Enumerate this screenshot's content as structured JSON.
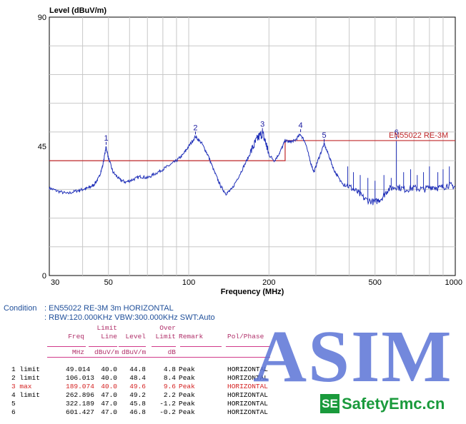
{
  "chart_data": {
    "type": "line",
    "title": "",
    "ylabel": "Level (dBuV/m)",
    "xlabel": "Frequency (MHz)",
    "xscale": "log",
    "xlim": [
      30,
      1000
    ],
    "ylim": [
      0,
      90
    ],
    "yticks": [
      "0",
      "45",
      "90"
    ],
    "xticks": [
      "30",
      "50",
      "100",
      "200",
      "500",
      "1000"
    ],
    "grid": true,
    "colors": {
      "trace": "#2030b8",
      "limit": "#c0282a",
      "grid": "#c8c8c8",
      "text": "#1a1aa0"
    },
    "limit_line": {
      "label": "EN55022 RE-3M",
      "segments": [
        {
          "x": [
            30,
            230
          ],
          "y": 40
        },
        {
          "x": [
            230,
            1000
          ],
          "y": 47
        }
      ]
    },
    "markers": [
      {
        "label": "1",
        "x": 49.014,
        "y": 44.8
      },
      {
        "label": "2",
        "x": 106.013,
        "y": 48.4
      },
      {
        "label": "3",
        "x": 189.074,
        "y": 49.6
      },
      {
        "label": "4",
        "x": 262.896,
        "y": 49.2
      },
      {
        "label": "5",
        "x": 322.189,
        "y": 45.8
      },
      {
        "label": "6",
        "x": 601.427,
        "y": 46.8
      }
    ],
    "trace": [
      [
        30,
        30.5
      ],
      [
        32,
        29.5
      ],
      [
        35,
        28.5
      ],
      [
        38,
        29.5
      ],
      [
        40,
        30
      ],
      [
        42,
        30.5
      ],
      [
        44,
        31.5
      ],
      [
        46,
        34
      ],
      [
        47.5,
        38
      ],
      [
        49,
        44.8
      ],
      [
        50,
        41
      ],
      [
        52,
        36
      ],
      [
        55,
        33.5
      ],
      [
        58,
        32.5
      ],
      [
        62,
        33.5
      ],
      [
        66,
        34.5
      ],
      [
        70,
        34
      ],
      [
        75,
        35.5
      ],
      [
        80,
        37
      ],
      [
        85,
        38.5
      ],
      [
        90,
        40
      ],
      [
        95,
        42
      ],
      [
        100,
        45
      ],
      [
        106,
        48.4
      ],
      [
        112,
        46
      ],
      [
        118,
        42
      ],
      [
        125,
        36
      ],
      [
        132,
        31
      ],
      [
        138,
        28.5
      ],
      [
        145,
        30
      ],
      [
        155,
        35
      ],
      [
        165,
        40
      ],
      [
        175,
        45
      ],
      [
        182,
        48
      ],
      [
        189,
        49.6
      ],
      [
        195,
        46
      ],
      [
        200,
        42
      ],
      [
        210,
        40
      ],
      [
        220,
        43
      ],
      [
        230,
        47
      ],
      [
        240,
        46.5
      ],
      [
        250,
        47
      ],
      [
        262.9,
        49.2
      ],
      [
        275,
        46
      ],
      [
        285,
        40
      ],
      [
        295,
        36
      ],
      [
        305,
        40
      ],
      [
        322,
        45.8
      ],
      [
        335,
        42
      ],
      [
        350,
        37
      ],
      [
        370,
        33
      ],
      [
        400,
        31
      ],
      [
        430,
        29
      ],
      [
        460,
        26.5
      ],
      [
        500,
        25.5
      ],
      [
        530,
        27
      ],
      [
        560,
        30
      ],
      [
        601,
        31
      ],
      [
        650,
        30
      ],
      [
        700,
        30.5
      ],
      [
        760,
        30
      ],
      [
        820,
        31
      ],
      [
        880,
        30.5
      ],
      [
        940,
        31.5
      ],
      [
        1000,
        31
      ]
    ],
    "spikes": [
      [
        395,
        38
      ],
      [
        415,
        36
      ],
      [
        440,
        35
      ],
      [
        470,
        34
      ],
      [
        500,
        33
      ],
      [
        540,
        35
      ],
      [
        575,
        34
      ],
      [
        601.427,
        46.8
      ],
      [
        640,
        36
      ],
      [
        680,
        37
      ],
      [
        720,
        35
      ],
      [
        760,
        36
      ],
      [
        800,
        38
      ],
      [
        860,
        36
      ],
      [
        900,
        37
      ],
      [
        950,
        38
      ]
    ]
  },
  "condition": {
    "label": "Condition",
    "line1": ": EN55022 RE-3M 3m HORIZONTAL",
    "line2": ": RBW:120.000KHz VBW:300.000KHz SWT:Auto"
  },
  "table": {
    "header1": [
      "",
      "",
      "Limit",
      "",
      "Over",
      "",
      ""
    ],
    "header2": [
      "",
      "Freq",
      "Line",
      "Level",
      "Limit",
      "Remark",
      "Pol/Phase"
    ],
    "units": [
      "",
      "MHz",
      "dBuV/m",
      "dBuV/m",
      "dB",
      "",
      ""
    ],
    "rows": [
      {
        "no": "1 limit",
        "freq": "49.014",
        "line": "40.0",
        "level": "44.8",
        "over": "4.8",
        "remark": "Peak",
        "pol": "HORIZONTAL",
        "highlight": false
      },
      {
        "no": "2 limit",
        "freq": "106.013",
        "line": "40.0",
        "level": "48.4",
        "over": "8.4",
        "remark": "Peak",
        "pol": "HORIZONTAL",
        "highlight": false
      },
      {
        "no": "3 max",
        "freq": "189.074",
        "line": "40.0",
        "level": "49.6",
        "over": "9.6",
        "remark": "Peak",
        "pol": "HORIZONTAL",
        "highlight": true
      },
      {
        "no": "4 limit",
        "freq": "262.896",
        "line": "47.0",
        "level": "49.2",
        "over": "2.2",
        "remark": "Peak",
        "pol": "HORIZONTAL",
        "highlight": false
      },
      {
        "no": "5",
        "freq": "322.189",
        "line": "47.0",
        "level": "45.8",
        "over": "-1.2",
        "remark": "Peak",
        "pol": "HORIZONTAL",
        "highlight": false
      },
      {
        "no": "6",
        "freq": "601.427",
        "line": "47.0",
        "level": "46.8",
        "over": "-0.2",
        "remark": "Peak",
        "pol": "HORIZONTAL",
        "highlight": false
      }
    ]
  },
  "watermark": {
    "big": "ASIM",
    "logo_mark": "SE",
    "logo_text": "SafetyEmc.cn"
  }
}
